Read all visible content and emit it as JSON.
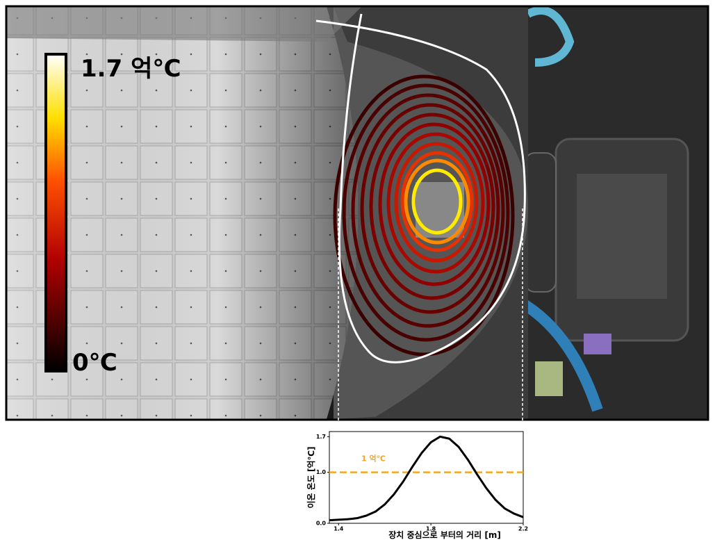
{
  "colorbar": {
    "max_label": "1.7 억℃",
    "min_label": "0℃"
  },
  "chart_data": {
    "type": "line",
    "xlabel": "장치 중심으로 부터의 거리 [m]",
    "ylabel": "이온 온도 [억℃]",
    "x": [
      1.36,
      1.4,
      1.44,
      1.48,
      1.52,
      1.56,
      1.6,
      1.64,
      1.68,
      1.72,
      1.76,
      1.8,
      1.84,
      1.88,
      1.92,
      1.96,
      2.0,
      2.04,
      2.08,
      2.12,
      2.16,
      2.2
    ],
    "series": [
      {
        "color": "#000000",
        "values": [
          0.06,
          0.07,
          0.08,
          0.1,
          0.15,
          0.23,
          0.37,
          0.57,
          0.82,
          1.11,
          1.38,
          1.59,
          1.7,
          1.66,
          1.5,
          1.25,
          0.96,
          0.69,
          0.46,
          0.29,
          0.19,
          0.12
        ]
      }
    ],
    "xlim": [
      1.36,
      2.2
    ],
    "xticks": [
      1.4,
      1.8,
      2.2
    ],
    "ylim": [
      0,
      1.8
    ],
    "yticks": [
      {
        "value": 0,
        "label": "0.0"
      },
      {
        "value": 1,
        "label": "1.0"
      },
      1.7
    ],
    "hline": {
      "value": 1,
      "label": "1 억℃",
      "color": "#f5a623"
    }
  }
}
